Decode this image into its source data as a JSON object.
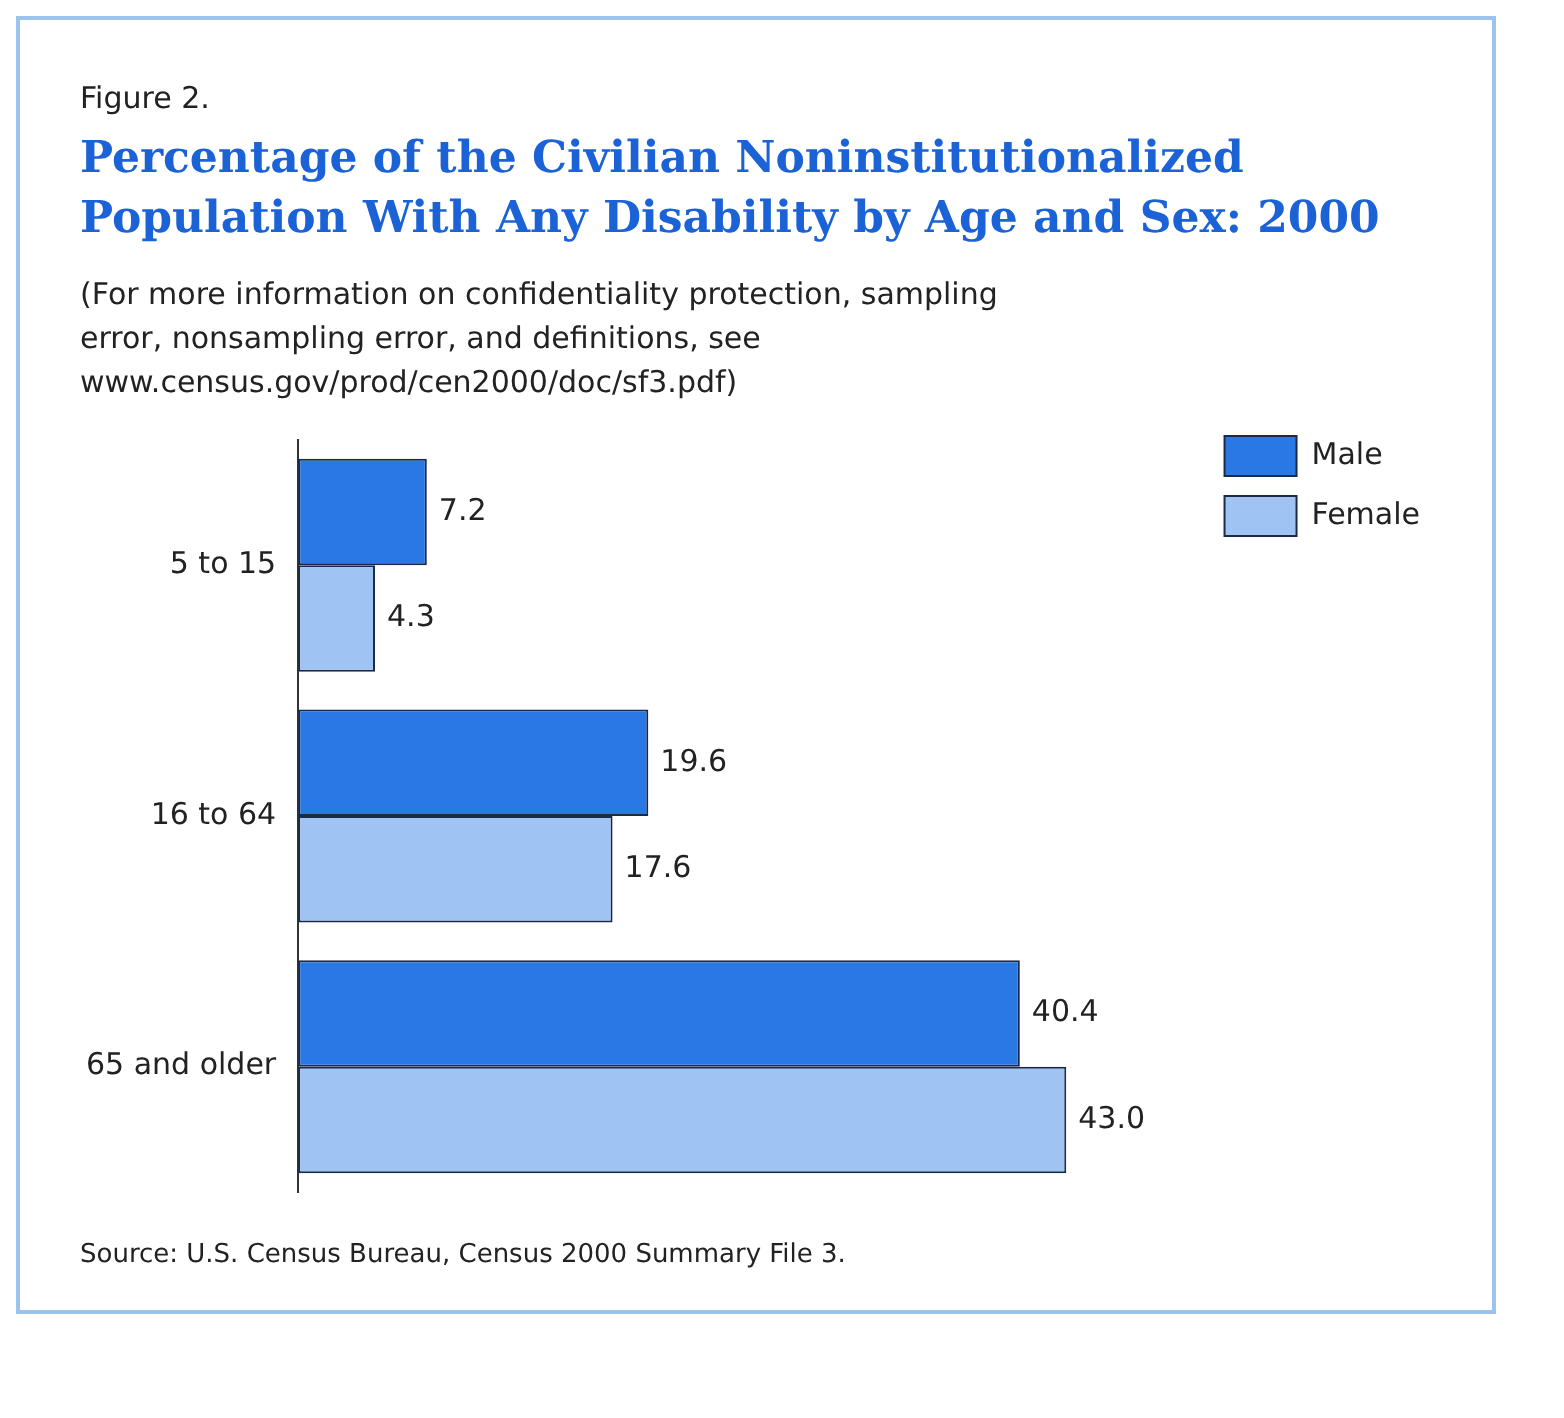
{
  "chart_data": {
    "type": "bar",
    "orientation": "horizontal",
    "title": "Percentage of the Civilian Noninstitutionalized Population With Any Disability by Age and Sex: 2000",
    "subtitle": "(For more information on confidentiality protection, sampling error, nonsampling error, and definitions, see www.census.gov/prod/cen2000/doc/sf3.pdf)",
    "annotations": [
      "Figure 2.",
      "Source: U.S. Census Bureau, Census 2000 Summary File 3."
    ],
    "categories": [
      "5 to 15",
      "16 to 64",
      "65 and older"
    ],
    "series": [
      {
        "name": "Male",
        "color": "#2a78e4",
        "values": [
          7.2,
          19.6,
          40.4
        ],
        "value_labels": [
          "7.2",
          "19.6",
          "40.4"
        ]
      },
      {
        "name": "Female",
        "color": "#9fc4f4",
        "values": [
          4.3,
          17.6,
          43.0
        ],
        "value_labels": [
          "4.3",
          "17.6",
          "43.0"
        ]
      }
    ],
    "legend": "top right"
  }
}
